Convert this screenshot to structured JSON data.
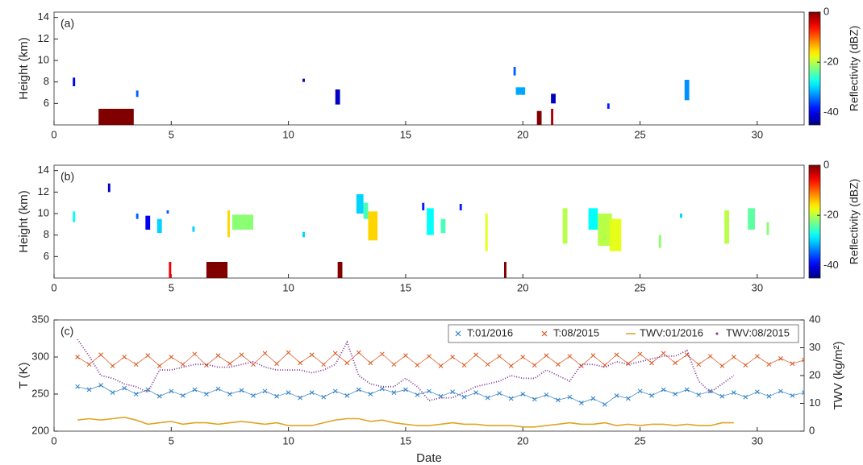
{
  "chart_data": [
    {
      "type": "heatmap",
      "label": "(a)",
      "ylabel": "Height (km)",
      "xlim": [
        0,
        32
      ],
      "xticks": [
        0,
        5,
        10,
        15,
        20,
        25,
        30
      ],
      "ylim": [
        4,
        14.5
      ],
      "yticks": [
        6,
        8,
        10,
        12,
        14
      ],
      "colormap": "jet",
      "clim": [
        -45,
        0
      ],
      "cticks": [
        0,
        -20,
        -40
      ],
      "clabel": "Reflectivity (dBZ)",
      "cells": [
        {
          "x": [
            0.8,
            0.9
          ],
          "y": [
            7.6,
            8.4
          ],
          "value": -40
        },
        {
          "x": [
            1.9,
            3.4
          ],
          "y": [
            4.0,
            5.5
          ],
          "value": 0
        },
        {
          "x": [
            3.5,
            3.6
          ],
          "y": [
            6.6,
            7.2
          ],
          "value": -35
        },
        {
          "x": [
            10.6,
            10.7
          ],
          "y": [
            8.0,
            8.3
          ],
          "value": -42
        },
        {
          "x": [
            12.0,
            12.2
          ],
          "y": [
            5.9,
            7.3
          ],
          "value": -42
        },
        {
          "x": [
            19.6,
            19.7
          ],
          "y": [
            8.6,
            9.4
          ],
          "value": -35
        },
        {
          "x": [
            19.7,
            20.1
          ],
          "y": [
            6.8,
            7.5
          ],
          "value": -32
        },
        {
          "x": [
            20.6,
            20.8
          ],
          "y": [
            4.0,
            5.3
          ],
          "value": 0
        },
        {
          "x": [
            21.2,
            21.4
          ],
          "y": [
            6.0,
            6.9
          ],
          "value": -42
        },
        {
          "x": [
            21.2,
            21.3
          ],
          "y": [
            4.0,
            5.5
          ],
          "value": -2
        },
        {
          "x": [
            23.6,
            23.7
          ],
          "y": [
            5.5,
            6.0
          ],
          "value": -38
        },
        {
          "x": [
            26.9,
            27.1
          ],
          "y": [
            6.3,
            8.2
          ],
          "value": -33
        }
      ]
    },
    {
      "type": "heatmap",
      "label": "(b)",
      "ylabel": "Height (km)",
      "xlim": [
        0,
        32
      ],
      "xticks": [
        0,
        5,
        10,
        15,
        20,
        25,
        30
      ],
      "ylim": [
        4,
        14.5
      ],
      "yticks": [
        6,
        8,
        10,
        12,
        14
      ],
      "colormap": "jet",
      "clim": [
        -45,
        0
      ],
      "cticks": [
        0,
        -20,
        -40
      ],
      "clabel": "Reflectivity (dBZ)",
      "cells": [
        {
          "x": [
            2.3,
            2.4
          ],
          "y": [
            12.0,
            12.8
          ],
          "value": -42
        },
        {
          "x": [
            0.8,
            0.9
          ],
          "y": [
            9.2,
            10.2
          ],
          "value": -28
        },
        {
          "x": [
            3.5,
            3.6
          ],
          "y": [
            9.5,
            10.0
          ],
          "value": -35
        },
        {
          "x": [
            3.9,
            4.1
          ],
          "y": [
            8.5,
            9.8
          ],
          "value": -40
        },
        {
          "x": [
            4.4,
            4.6
          ],
          "y": [
            8.2,
            9.5
          ],
          "value": -30
        },
        {
          "x": [
            4.8,
            4.9
          ],
          "y": [
            10.0,
            10.3
          ],
          "value": -35
        },
        {
          "x": [
            4.9,
            5.0
          ],
          "y": [
            4.0,
            5.5
          ],
          "value": -5
        },
        {
          "x": [
            5.9,
            6.0
          ],
          "y": [
            8.3,
            8.8
          ],
          "value": -30
        },
        {
          "x": [
            6.5,
            7.4
          ],
          "y": [
            4.0,
            5.5
          ],
          "value": 0
        },
        {
          "x": [
            7.4,
            7.5
          ],
          "y": [
            7.8,
            10.3
          ],
          "value": -15
        },
        {
          "x": [
            7.6,
            8.5
          ],
          "y": [
            8.5,
            9.9
          ],
          "value": -22
        },
        {
          "x": [
            10.6,
            10.7
          ],
          "y": [
            7.8,
            8.3
          ],
          "value": -30
        },
        {
          "x": [
            12.1,
            12.3
          ],
          "y": [
            4.0,
            5.5
          ],
          "value": 0
        },
        {
          "x": [
            12.9,
            13.2
          ],
          "y": [
            10.0,
            11.8
          ],
          "value": -30
        },
        {
          "x": [
            13.2,
            13.4
          ],
          "y": [
            9.5,
            11.0
          ],
          "value": -25
        },
        {
          "x": [
            13.4,
            13.8
          ],
          "y": [
            7.5,
            10.2
          ],
          "value": -15
        },
        {
          "x": [
            15.7,
            15.8
          ],
          "y": [
            10.3,
            11.0
          ],
          "value": -38
        },
        {
          "x": [
            15.9,
            16.2
          ],
          "y": [
            8.0,
            10.5
          ],
          "value": -28
        },
        {
          "x": [
            16.5,
            16.7
          ],
          "y": [
            8.2,
            9.5
          ],
          "value": -25
        },
        {
          "x": [
            17.3,
            17.4
          ],
          "y": [
            10.3,
            10.9
          ],
          "value": -38
        },
        {
          "x": [
            18.4,
            18.5
          ],
          "y": [
            6.5,
            10.0
          ],
          "value": -18
        },
        {
          "x": [
            19.2,
            19.3
          ],
          "y": [
            4.0,
            5.5
          ],
          "value": 0
        },
        {
          "x": [
            21.7,
            21.9
          ],
          "y": [
            7.2,
            10.5
          ],
          "value": -20
        },
        {
          "x": [
            22.8,
            23.2
          ],
          "y": [
            8.5,
            10.5
          ],
          "value": -28
        },
        {
          "x": [
            23.2,
            23.8
          ],
          "y": [
            7.0,
            10.0
          ],
          "value": -20
        },
        {
          "x": [
            23.7,
            24.2
          ],
          "y": [
            6.5,
            9.5
          ],
          "value": -18
        },
        {
          "x": [
            25.8,
            25.9
          ],
          "y": [
            6.8,
            8.0
          ],
          "value": -22
        },
        {
          "x": [
            26.7,
            26.8
          ],
          "y": [
            9.6,
            10.0
          ],
          "value": -30
        },
        {
          "x": [
            28.6,
            28.8
          ],
          "y": [
            7.2,
            10.3
          ],
          "value": -20
        },
        {
          "x": [
            29.6,
            29.9
          ],
          "y": [
            8.5,
            10.5
          ],
          "value": -24
        },
        {
          "x": [
            30.4,
            30.5
          ],
          "y": [
            8.0,
            9.2
          ],
          "value": -22
        }
      ]
    },
    {
      "type": "line",
      "label": "(c)",
      "xlabel": "Date",
      "ylabel": "T (K)",
      "y2label": "TWV (kg/m²)",
      "xlim": [
        0,
        32
      ],
      "xticks": [
        0,
        5,
        10,
        15,
        20,
        25,
        30
      ],
      "ylim": [
        200,
        350
      ],
      "yticks": [
        200,
        250,
        300,
        350
      ],
      "y2lim": [
        0,
        40
      ],
      "y2ticks": [
        0,
        10,
        20,
        30,
        40
      ],
      "legend": "upper right",
      "x": [
        1,
        1.5,
        2,
        2.5,
        3,
        3.5,
        4,
        4.5,
        5,
        5.5,
        6,
        6.5,
        7,
        7.5,
        8,
        8.5,
        9,
        9.5,
        10,
        10.5,
        11,
        11.5,
        12,
        12.5,
        13,
        13.5,
        14,
        14.5,
        15,
        15.5,
        16,
        16.5,
        17,
        17.5,
        18,
        18.5,
        19,
        19.5,
        20,
        20.5,
        21,
        21.5,
        22,
        22.5,
        23,
        23.5,
        24,
        24.5,
        25,
        25.5,
        26,
        26.5,
        27,
        27.5,
        28,
        28.5,
        29,
        29.5,
        30,
        30.5,
        31,
        31.5,
        32
      ],
      "series": [
        {
          "name": "T:01/2016",
          "color": "#2e7fc4",
          "style": "x-markers",
          "axis": "y",
          "values": [
            260,
            256,
            262,
            252,
            258,
            250,
            256,
            247,
            254,
            248,
            256,
            250,
            257,
            250,
            255,
            248,
            254,
            247,
            252,
            245,
            252,
            246,
            254,
            248,
            256,
            250,
            257,
            252,
            256,
            249,
            254,
            247,
            253,
            246,
            252,
            245,
            251,
            244,
            250,
            243,
            249,
            242,
            246,
            238,
            244,
            236,
            248,
            244,
            254,
            248,
            256,
            250,
            256,
            249,
            254,
            247,
            252,
            246,
            253,
            247,
            254,
            248,
            252
          ]
        },
        {
          "name": "T:08/2015",
          "color": "#d9541a",
          "style": "x-markers",
          "axis": "y",
          "values": [
            300,
            290,
            303,
            288,
            300,
            290,
            302,
            288,
            300,
            290,
            304,
            289,
            302,
            291,
            303,
            290,
            305,
            291,
            306,
            292,
            303,
            290,
            305,
            292,
            306,
            292,
            304,
            290,
            302,
            289,
            301,
            288,
            300,
            289,
            303,
            290,
            301,
            288,
            300,
            289,
            302,
            290,
            301,
            288,
            302,
            289,
            303,
            291,
            304,
            292,
            305,
            292,
            303,
            290,
            301,
            288,
            300,
            289,
            301,
            290,
            298,
            291,
            296
          ]
        },
        {
          "name": "TWV:01/2016",
          "color": "#e0a526",
          "style": "line",
          "axis": "y2",
          "values": [
            4,
            4.5,
            4,
            4.5,
            5,
            4,
            2.5,
            3,
            3.5,
            2.5,
            3,
            3,
            2.5,
            3,
            3.5,
            3,
            2.5,
            3,
            2,
            2,
            2,
            3,
            4,
            4.5,
            4.5,
            3.5,
            4,
            3,
            2.5,
            2,
            2,
            2.5,
            3,
            2.5,
            2.5,
            2,
            2,
            2,
            1.5,
            1.5,
            2,
            2.5,
            3,
            2.5,
            2.5,
            3,
            2,
            2.5,
            2,
            2.5,
            2.5,
            2,
            2.5,
            2,
            2,
            3,
            3,
            null,
            null,
            null,
            null,
            null,
            null
          ]
        },
        {
          "name": "TWV:08/2015",
          "color": "#7e2f8e",
          "style": "dots",
          "axis": "y2",
          "values": [
            33,
            27,
            20,
            19,
            17,
            16,
            14,
            22,
            22,
            23,
            24,
            24,
            23,
            23,
            24,
            25,
            23,
            22,
            22,
            22,
            21,
            22,
            24,
            32,
            20,
            17,
            16,
            16,
            19,
            16,
            11,
            12,
            12,
            14,
            16,
            17,
            18,
            20,
            19,
            19,
            22,
            20,
            18,
            24,
            24,
            23,
            25,
            24,
            25,
            26,
            27,
            27,
            29,
            18,
            14,
            17,
            20,
            null,
            null,
            null,
            null,
            null,
            null
          ]
        }
      ]
    }
  ]
}
